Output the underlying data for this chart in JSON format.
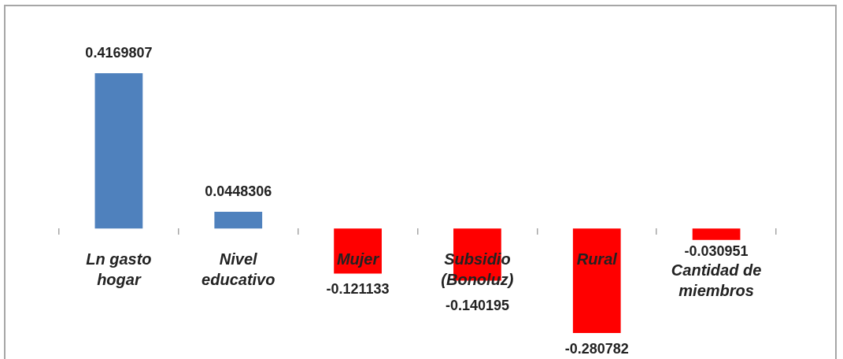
{
  "chart_data": {
    "type": "bar",
    "categories": [
      "Ln gasto hogar",
      "Nivel educativo",
      "Mujer",
      "Subsidio (Bonoluz)",
      "Rural",
      "Cantidad de miembros"
    ],
    "values": [
      0.4169807,
      0.0448306,
      -0.121133,
      -0.140195,
      -0.280782,
      -0.030951
    ],
    "colors": [
      "#4f81bd",
      "#4f81bd",
      "#ff0000",
      "#ff0000",
      "#ff0000",
      "#ff0000"
    ],
    "data_labels": true,
    "tick_labels": "x"
  }
}
